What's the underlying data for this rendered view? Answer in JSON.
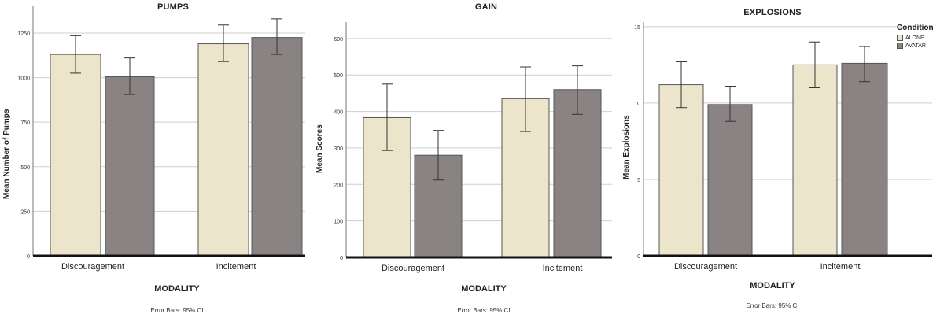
{
  "colors": {
    "ALONE": "#ede5cb",
    "AVATAR": "#8a8384",
    "grid": "#cfcfcf",
    "axis": "#111111",
    "error": "#333333"
  },
  "legend": {
    "title": "Condition",
    "items": [
      {
        "label": "ALONE",
        "color_key": "ALONE"
      },
      {
        "label": "AVATAR",
        "color_key": "AVATAR"
      }
    ]
  },
  "chart_data": [
    {
      "type": "bar",
      "title": "PUMPS",
      "xlabel": "MODALITY",
      "ylabel": "Mean  Number of Pumps",
      "note": "Error Bars: 95% CI",
      "categories": [
        "Discouragement",
        "Incitement"
      ],
      "ylim": [
        0,
        1400
      ],
      "yticks": [
        0,
        250,
        500,
        750,
        1000,
        1250
      ],
      "grid": true,
      "series": [
        {
          "name": "ALONE",
          "values": [
            1130,
            1190
          ],
          "ci_low": [
            1025,
            1090
          ],
          "ci_high": [
            1235,
            1295
          ]
        },
        {
          "name": "AVATAR",
          "values": [
            1005,
            1225
          ],
          "ci_low": [
            905,
            1130
          ],
          "ci_high": [
            1110,
            1330
          ]
        }
      ]
    },
    {
      "type": "bar",
      "title": "GAIN",
      "xlabel": "MODALITY",
      "ylabel": "Mean Scores",
      "note": "Error Bars: 95% CI",
      "categories": [
        "Discouragement",
        "Incitement"
      ],
      "ylim": [
        0,
        645
      ],
      "yticks": [
        0,
        100,
        200,
        300,
        400,
        500,
        600
      ],
      "grid": true,
      "series": [
        {
          "name": "ALONE",
          "values": [
            383,
            435
          ],
          "ci_low": [
            293,
            345
          ],
          "ci_high": [
            475,
            522
          ]
        },
        {
          "name": "AVATAR",
          "values": [
            280,
            460
          ],
          "ci_low": [
            212,
            392
          ],
          "ci_high": [
            348,
            525
          ]
        }
      ]
    },
    {
      "type": "bar",
      "title": "EXPLOSIONS",
      "xlabel": "MODALITY",
      "ylabel": "Mean Explosions",
      "note": "Error Bars: 95% CI",
      "categories": [
        "Discouragement",
        "Incitement"
      ],
      "ylim": [
        0,
        15.3
      ],
      "yticks": [
        0,
        5,
        10,
        15
      ],
      "grid": true,
      "series": [
        {
          "name": "ALONE",
          "values": [
            11.2,
            12.5
          ],
          "ci_low": [
            9.7,
            11.0
          ],
          "ci_high": [
            12.7,
            14.0
          ]
        },
        {
          "name": "AVATAR",
          "values": [
            9.9,
            12.6
          ],
          "ci_low": [
            8.8,
            11.4
          ],
          "ci_high": [
            11.1,
            13.7
          ]
        }
      ]
    }
  ]
}
